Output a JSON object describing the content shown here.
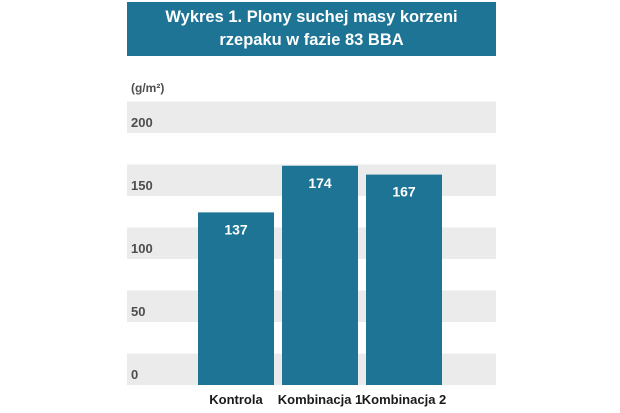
{
  "title": "Wykres 1. Plony suchej masy korzeni rzepaku w fazie 83 BBA",
  "colors": {
    "title_bg": "#1d7495",
    "bar": "#1d7495",
    "band": "#ebebeb",
    "text": "#4d4d4d"
  },
  "chart_data": {
    "type": "bar",
    "title": "Wykres 1. Plony suchej masy korzeni rzepaku w fazie 83 BBA",
    "ylabel": "(g/m²)",
    "xlabel": "",
    "categories": [
      "Kontrola",
      "Kombinacja 1",
      "Kombinacja 2"
    ],
    "values": [
      137,
      174,
      167
    ],
    "value_labels": [
      "137",
      "174",
      "167"
    ],
    "yticks": [
      0,
      50,
      100,
      150,
      200
    ],
    "ytick_labels": [
      "0",
      "50",
      "100",
      "150",
      "200"
    ],
    "ylim": [
      0,
      250
    ],
    "grid": "alternating horizontal bands",
    "legend": "none"
  }
}
